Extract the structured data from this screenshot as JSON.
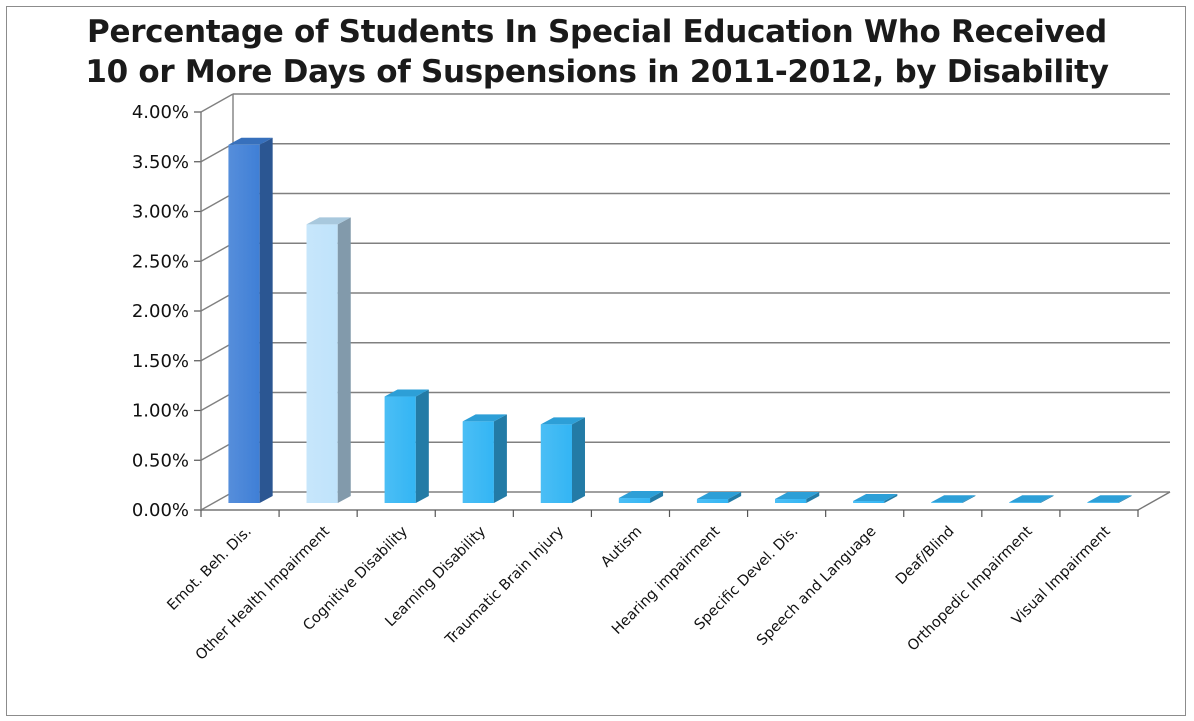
{
  "chart_data": {
    "type": "bar",
    "title": "Percentage of Students In Special Education Who Received\n10 or More Days of Suspensions in 2011-2012, by Disability",
    "xlabel": "",
    "ylabel": "",
    "ylim": [
      0,
      0.04
    ],
    "yticks": [
      "0.00%",
      "0.50%",
      "1.00%",
      "1.50%",
      "2.00%",
      "2.50%",
      "3.00%",
      "3.50%",
      "4.00%"
    ],
    "categories": [
      "Emot. Beh. Dis.",
      "Other Health Impairment",
      "Cognitive Disability",
      "Learning Disability",
      "Traumatic Brain Injury",
      "Autism",
      "Hearing impairment",
      "Specific Devel. Dis.",
      "Speech and Language",
      "Deaf/Blind",
      "Orthopedic Impairment",
      "Visual Impairment"
    ],
    "values": [
      0.036,
      0.028,
      0.0107,
      0.0082,
      0.0079,
      0.0005,
      0.0004,
      0.0004,
      0.0002,
      0.0,
      0.0,
      0.0
    ],
    "grid": true,
    "legend": "none",
    "style": "3d-column",
    "bar_colors": [
      "#3f7fd6",
      "#bfe3fb",
      "#33b5f4",
      "#33b5f4",
      "#33b5f4",
      "#33b5f4",
      "#33b5f4",
      "#33b5f4",
      "#33b5f4",
      "#33b5f4",
      "#33b5f4",
      "#33b5f4"
    ],
    "grid_color": "#808080"
  }
}
